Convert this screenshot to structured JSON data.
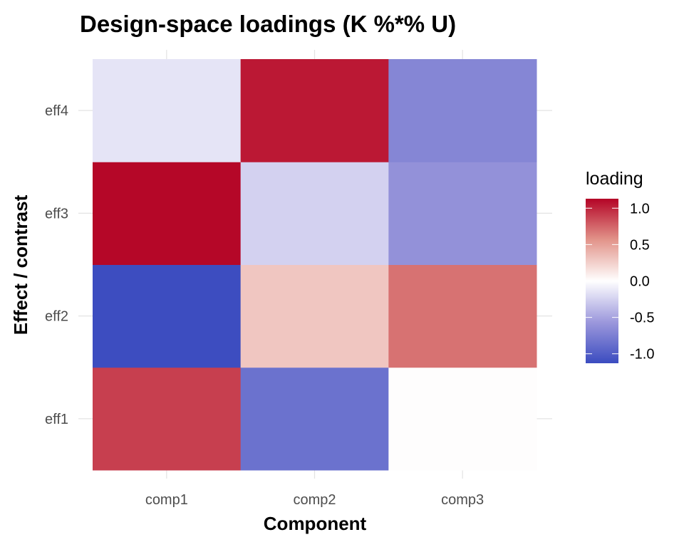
{
  "chart_data": {
    "type": "heatmap",
    "title": "Design-space loadings (K %*% U)",
    "xlabel": "Component",
    "ylabel": "Effect / contrast",
    "x_categories": [
      "comp1",
      "comp2",
      "comp3"
    ],
    "y_categories": [
      "eff1",
      "eff2",
      "eff3",
      "eff4"
    ],
    "values": [
      [
        0.9,
        -0.85,
        0.01
      ],
      [
        -1.12,
        0.3,
        0.7
      ],
      [
        1.12,
        -0.25,
        -0.62
      ],
      [
        -0.15,
        1.05,
        -0.7
      ]
    ],
    "legend": {
      "title": "loading",
      "ticks": [
        1.0,
        0.5,
        0.0,
        -0.5,
        -1.0
      ],
      "tick_labels": [
        "1.0",
        "0.5",
        "0.0",
        "-0.5",
        "-1.0"
      ],
      "limits": [
        -1.13,
        1.13
      ],
      "position": "right"
    },
    "colors": {
      "low": "#3B4CC0",
      "mid": "#FFFFFF",
      "high": "#B40426"
    },
    "grid": true
  }
}
